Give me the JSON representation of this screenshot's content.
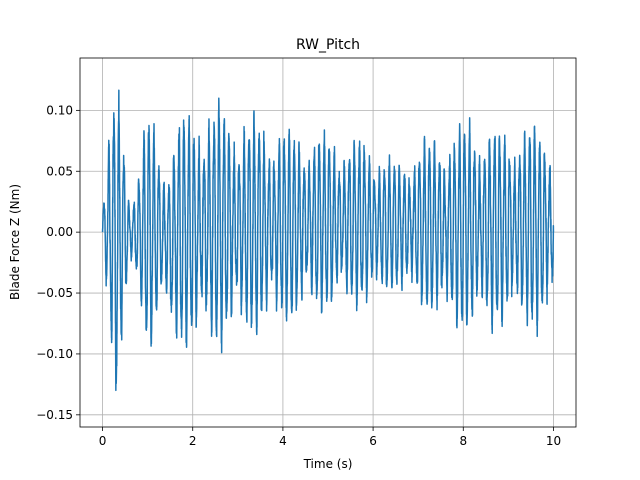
{
  "chart_data": {
    "type": "line",
    "title": "RW_Pitch",
    "xlabel": "Time (s)",
    "ylabel": "Blade Force Z (Nm)",
    "xlim": [
      -0.5,
      10.5
    ],
    "ylim": [
      -0.16,
      0.143
    ],
    "x_ticks": [
      0,
      2,
      4,
      6,
      8,
      10
    ],
    "x_tick_labels": [
      "0",
      "2",
      "4",
      "6",
      "8",
      "10"
    ],
    "y_ticks": [
      -0.15,
      -0.1,
      -0.05,
      0.0,
      0.05,
      0.1
    ],
    "y_tick_labels": [
      "−0.15",
      "−0.10",
      "−0.05",
      "0.00",
      "0.05",
      "0.10"
    ],
    "grid": true,
    "series": [
      {
        "color": "#1f77b4",
        "x_range": [
          0,
          10
        ],
        "envelope": {
          "t": [
            0.0,
            0.1,
            0.2,
            0.28,
            0.35,
            0.45,
            0.6,
            0.8,
            0.95,
            1.1,
            1.3,
            1.5,
            1.7,
            2.0,
            2.3,
            2.6,
            3.0,
            3.4,
            3.8,
            4.2,
            4.6,
            5.0,
            5.4,
            5.8,
            6.2,
            6.5,
            6.8,
            7.2,
            7.6,
            7.9,
            8.2,
            8.6,
            9.0,
            9.4,
            9.8,
            10.0
          ],
          "max": [
            0.02,
            0.07,
            0.1,
            0.13,
            0.12,
            0.09,
            0.03,
            0.06,
            0.1,
            0.1,
            0.06,
            0.08,
            0.1,
            0.1,
            0.11,
            0.11,
            0.1,
            0.1,
            0.09,
            0.09,
            0.085,
            0.085,
            0.08,
            0.08,
            0.07,
            0.06,
            0.07,
            0.08,
            0.085,
            0.09,
            0.1,
            0.09,
            0.09,
            0.09,
            0.095,
            0.09
          ],
          "min": [
            -0.02,
            -0.06,
            -0.1,
            -0.15,
            -0.13,
            -0.09,
            -0.03,
            -0.06,
            -0.1,
            -0.1,
            -0.06,
            -0.1,
            -0.1,
            -0.1,
            -0.1,
            -0.1,
            -0.09,
            -0.09,
            -0.08,
            -0.08,
            -0.07,
            -0.07,
            -0.065,
            -0.065,
            -0.06,
            -0.05,
            -0.06,
            -0.07,
            -0.08,
            -0.085,
            -0.09,
            -0.085,
            -0.08,
            -0.08,
            -0.09,
            -0.07
          ]
        },
        "dominant_frequency_hz": 9
      }
    ]
  }
}
